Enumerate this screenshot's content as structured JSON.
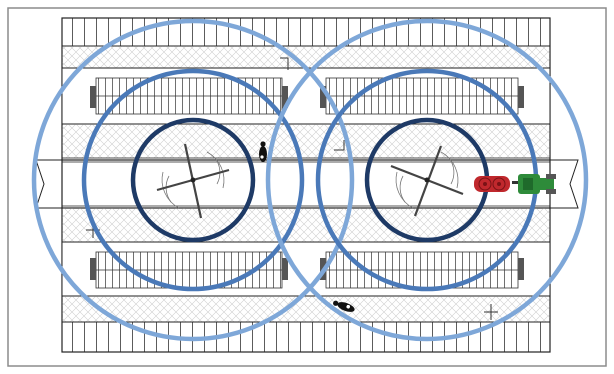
{
  "diagram": {
    "kind": "barn-floor-plan-fan-coverage",
    "colors": {
      "frame": "#8c8c8c",
      "line": "#1a1a1a",
      "hatch": "#c8c8c8",
      "ring_outer": "#7ea7d8",
      "ring_mid": "#4a79b8",
      "ring_inner": "#1e3a66",
      "hose_reel": "#c0282d",
      "tractor": "#2e8b3a"
    },
    "fans": [
      {
        "name": "fan-left",
        "rings": [
          "outer",
          "mid",
          "inner"
        ]
      },
      {
        "name": "fan-right",
        "rings": [
          "outer",
          "mid",
          "inner"
        ]
      }
    ],
    "icons": [
      "fan-icon",
      "fan-icon",
      "cow-icon",
      "cow-icon",
      "hose-reel-icon",
      "tractor-icon"
    ]
  }
}
